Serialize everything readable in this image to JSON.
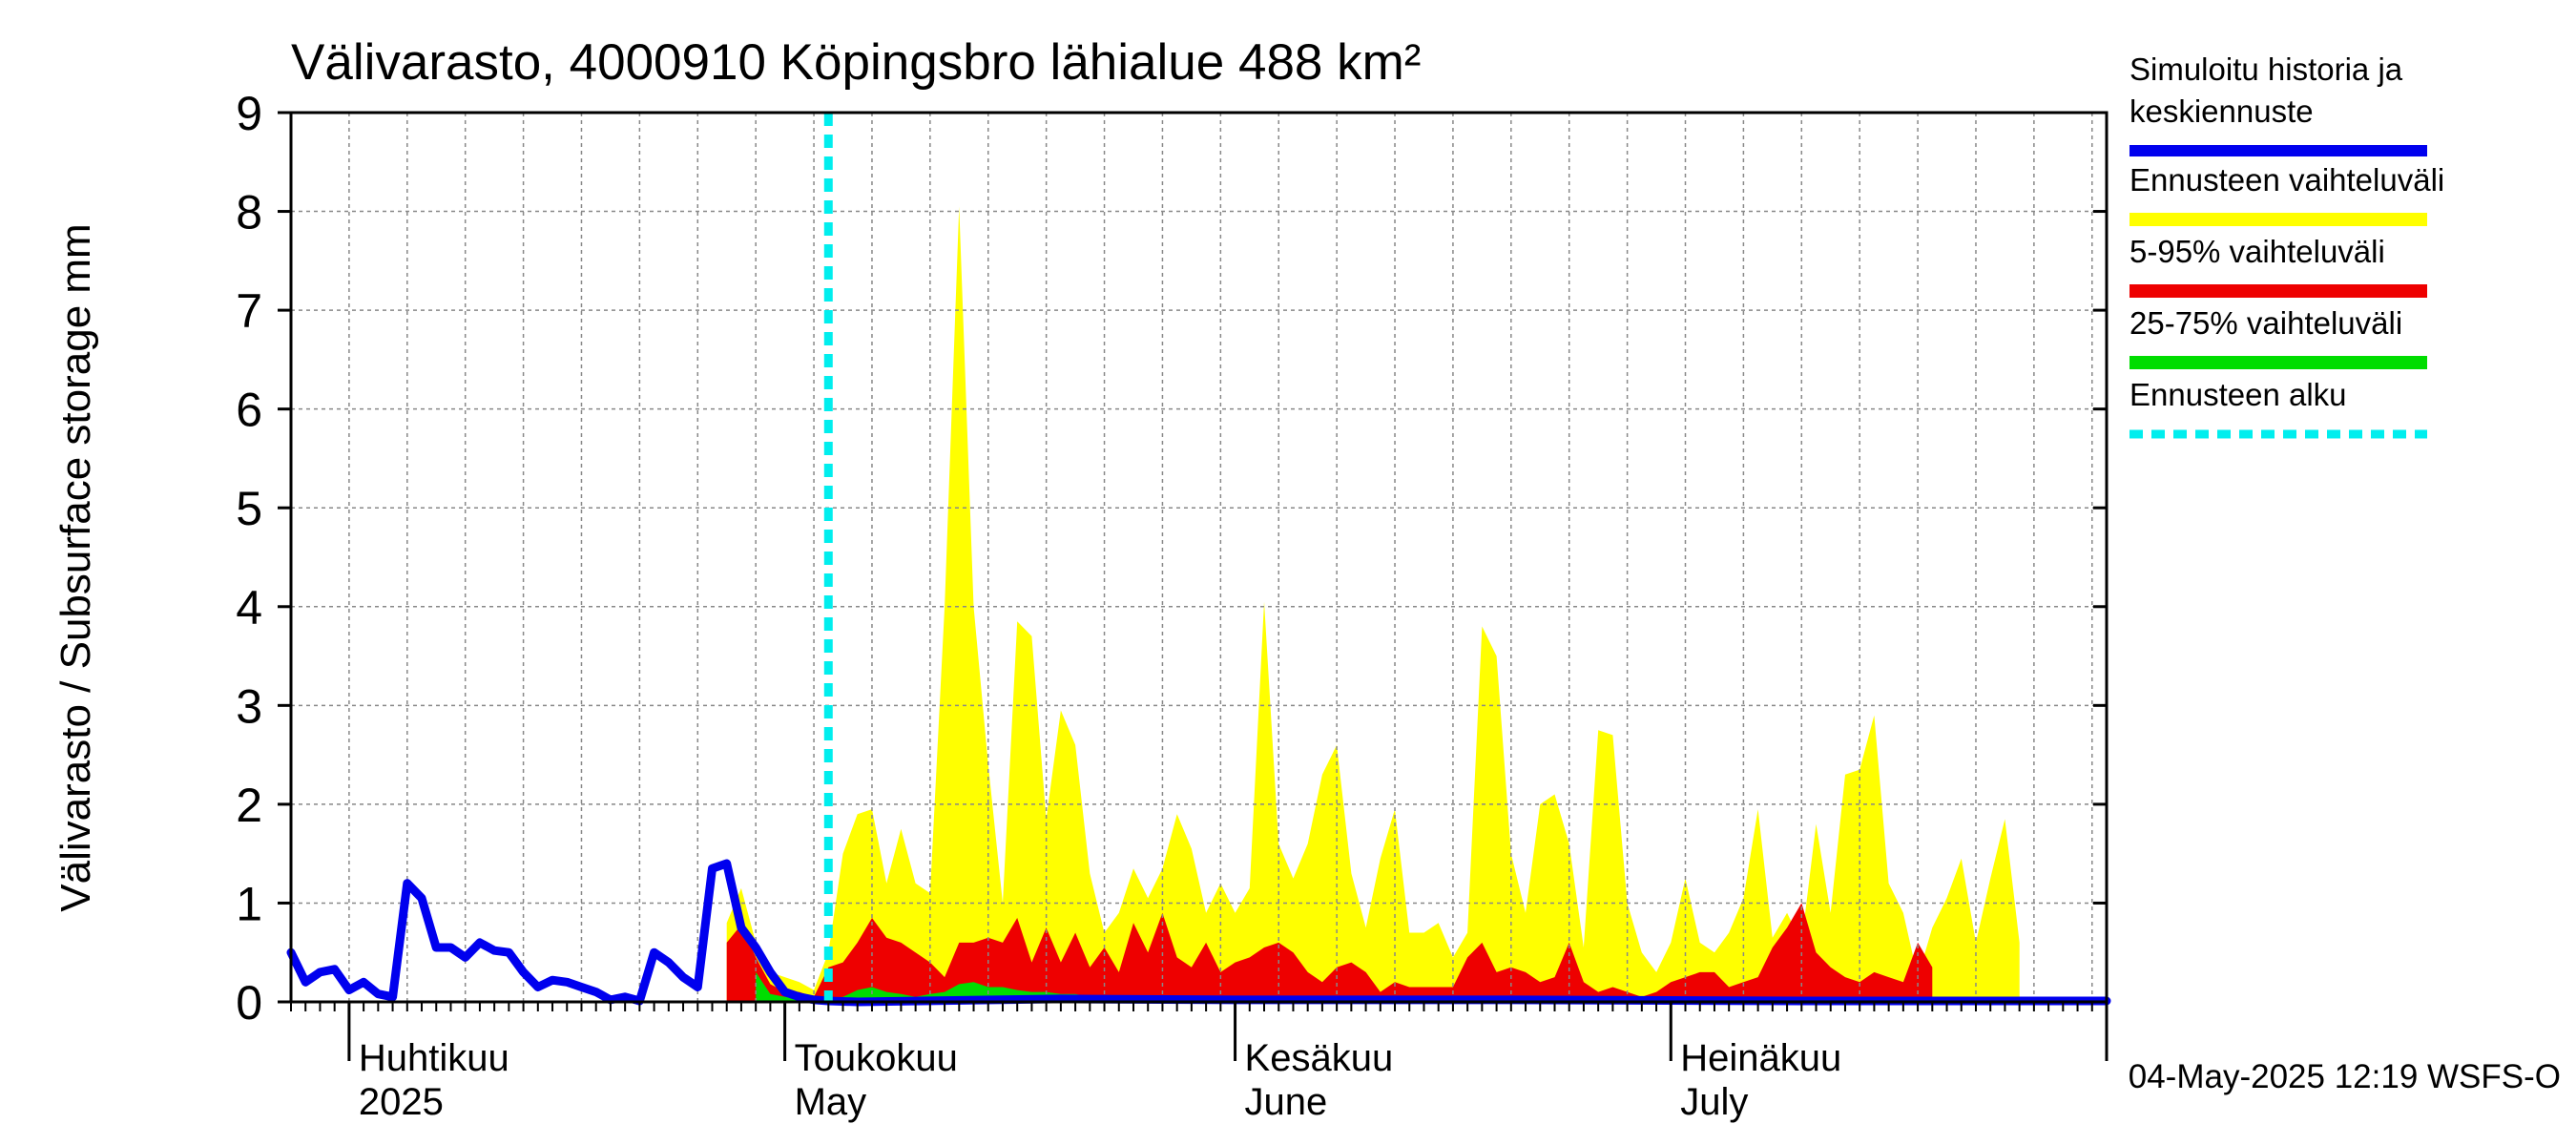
{
  "chart_data": {
    "type": "area",
    "title": "Välivarasto, 4000910 Köpingsbro lähialue 488 km²",
    "ylabel": "Välivarasto / Subsurface storage  mm",
    "ylim": [
      0,
      9
    ],
    "yticks": [
      0,
      1,
      2,
      3,
      4,
      5,
      6,
      7,
      8,
      9
    ],
    "xlim": [
      "2025-03-28",
      "2025-07-31"
    ],
    "grid": true,
    "legend_position": "right",
    "x_labels": [
      {
        "date": "2025-04-01",
        "line1": "Huhtikuu",
        "line2": "2025"
      },
      {
        "date": "2025-05-01",
        "line1": "Toukokuu",
        "line2": "May"
      },
      {
        "date": "2025-06-01",
        "line1": "Kesäkuu",
        "line2": "June"
      },
      {
        "date": "2025-07-01",
        "line1": "Heinäkuu",
        "line2": "July"
      }
    ],
    "forecast_start": "2025-05-04",
    "series": [
      {
        "name": "Simuloitu historia ja keskiennuste",
        "kind": "line",
        "color": "#0000ee",
        "points": [
          [
            "2025-03-28",
            0.5
          ],
          [
            "2025-03-29",
            0.2
          ],
          [
            "2025-03-30",
            0.3
          ],
          [
            "2025-03-31",
            0.33
          ],
          [
            "2025-04-01",
            0.12
          ],
          [
            "2025-04-02",
            0.2
          ],
          [
            "2025-04-03",
            0.08
          ],
          [
            "2025-04-04",
            0.05
          ],
          [
            "2025-04-05",
            1.2
          ],
          [
            "2025-04-06",
            1.05
          ],
          [
            "2025-04-07",
            0.55
          ],
          [
            "2025-04-08",
            0.55
          ],
          [
            "2025-04-09",
            0.45
          ],
          [
            "2025-04-10",
            0.6
          ],
          [
            "2025-04-11",
            0.52
          ],
          [
            "2025-04-12",
            0.5
          ],
          [
            "2025-04-13",
            0.3
          ],
          [
            "2025-04-14",
            0.15
          ],
          [
            "2025-04-15",
            0.22
          ],
          [
            "2025-04-16",
            0.2
          ],
          [
            "2025-04-17",
            0.15
          ],
          [
            "2025-04-18",
            0.1
          ],
          [
            "2025-04-19",
            0.02
          ],
          [
            "2025-04-20",
            0.05
          ],
          [
            "2025-04-21",
            0.01
          ],
          [
            "2025-04-22",
            0.5
          ],
          [
            "2025-04-23",
            0.4
          ],
          [
            "2025-04-24",
            0.25
          ],
          [
            "2025-04-25",
            0.15
          ],
          [
            "2025-04-26",
            1.35
          ],
          [
            "2025-04-27",
            1.4
          ],
          [
            "2025-04-28",
            0.75
          ],
          [
            "2025-04-29",
            0.55
          ],
          [
            "2025-04-30",
            0.3
          ],
          [
            "2025-05-01",
            0.1
          ],
          [
            "2025-05-02",
            0.05
          ],
          [
            "2025-05-03",
            0.02
          ],
          [
            "2025-05-04",
            0.01
          ],
          [
            "2025-05-06",
            0.0
          ],
          [
            "2025-05-20",
            0.03
          ],
          [
            "2025-06-01",
            0.02
          ],
          [
            "2025-06-20",
            0.02
          ],
          [
            "2025-07-10",
            0.01
          ],
          [
            "2025-07-31",
            0.01
          ]
        ]
      },
      {
        "name": "Ennusteen vaihteluväli",
        "kind": "band",
        "color": "#ffff00",
        "upper": [
          [
            "2025-04-27",
            0.8
          ],
          [
            "2025-04-28",
            1.15
          ],
          [
            "2025-04-29",
            0.6
          ],
          [
            "2025-04-30",
            0.3
          ],
          [
            "2025-05-01",
            0.25
          ],
          [
            "2025-05-02",
            0.2
          ],
          [
            "2025-05-03",
            0.12
          ],
          [
            "2025-05-04",
            0.5
          ],
          [
            "2025-05-05",
            1.5
          ],
          [
            "2025-05-06",
            1.9
          ],
          [
            "2025-05-07",
            1.95
          ],
          [
            "2025-05-08",
            1.2
          ],
          [
            "2025-05-09",
            1.75
          ],
          [
            "2025-05-10",
            1.2
          ],
          [
            "2025-05-11",
            1.1
          ],
          [
            "2025-05-12",
            4.0
          ],
          [
            "2025-05-13",
            8.05
          ],
          [
            "2025-05-14",
            4.0
          ],
          [
            "2025-05-15",
            2.4
          ],
          [
            "2025-05-16",
            1.0
          ],
          [
            "2025-05-17",
            3.85
          ],
          [
            "2025-05-18",
            3.7
          ],
          [
            "2025-05-19",
            1.85
          ],
          [
            "2025-05-20",
            2.95
          ],
          [
            "2025-05-21",
            2.6
          ],
          [
            "2025-05-22",
            1.3
          ],
          [
            "2025-05-23",
            0.7
          ],
          [
            "2025-05-24",
            0.9
          ],
          [
            "2025-05-25",
            1.35
          ],
          [
            "2025-05-26",
            1.05
          ],
          [
            "2025-05-27",
            1.35
          ],
          [
            "2025-05-28",
            1.9
          ],
          [
            "2025-05-29",
            1.55
          ],
          [
            "2025-05-30",
            0.9
          ],
          [
            "2025-05-31",
            1.2
          ],
          [
            "2025-06-01",
            0.9
          ],
          [
            "2025-06-02",
            1.15
          ],
          [
            "2025-06-03",
            4.05
          ],
          [
            "2025-06-04",
            1.6
          ],
          [
            "2025-06-05",
            1.25
          ],
          [
            "2025-06-06",
            1.6
          ],
          [
            "2025-06-07",
            2.3
          ],
          [
            "2025-06-08",
            2.6
          ],
          [
            "2025-06-09",
            1.3
          ],
          [
            "2025-06-10",
            0.75
          ],
          [
            "2025-06-11",
            1.45
          ],
          [
            "2025-06-12",
            1.95
          ],
          [
            "2025-06-13",
            0.7
          ],
          [
            "2025-06-14",
            0.7
          ],
          [
            "2025-06-15",
            0.8
          ],
          [
            "2025-06-16",
            0.45
          ],
          [
            "2025-06-17",
            0.7
          ],
          [
            "2025-06-18",
            3.8
          ],
          [
            "2025-06-19",
            3.5
          ],
          [
            "2025-06-20",
            1.5
          ],
          [
            "2025-06-21",
            0.9
          ],
          [
            "2025-06-22",
            2.0
          ],
          [
            "2025-06-23",
            2.1
          ],
          [
            "2025-06-24",
            1.6
          ],
          [
            "2025-06-25",
            0.55
          ],
          [
            "2025-06-26",
            2.75
          ],
          [
            "2025-06-27",
            2.7
          ],
          [
            "2025-06-28",
            1.0
          ],
          [
            "2025-06-29",
            0.5
          ],
          [
            "2025-06-30",
            0.3
          ],
          [
            "2025-07-01",
            0.6
          ],
          [
            "2025-07-02",
            1.25
          ],
          [
            "2025-07-03",
            0.6
          ],
          [
            "2025-07-04",
            0.5
          ],
          [
            "2025-07-05",
            0.7
          ],
          [
            "2025-07-06",
            1.05
          ],
          [
            "2025-07-07",
            1.95
          ],
          [
            "2025-07-08",
            0.65
          ],
          [
            "2025-07-09",
            0.9
          ],
          [
            "2025-07-10",
            0.6
          ],
          [
            "2025-07-11",
            1.8
          ],
          [
            "2025-07-12",
            0.9
          ],
          [
            "2025-07-13",
            2.3
          ],
          [
            "2025-07-14",
            2.35
          ],
          [
            "2025-07-15",
            2.9
          ],
          [
            "2025-07-16",
            1.2
          ],
          [
            "2025-07-17",
            0.9
          ],
          [
            "2025-07-18",
            0.25
          ],
          [
            "2025-07-19",
            0.75
          ],
          [
            "2025-07-20",
            1.05
          ],
          [
            "2025-07-21",
            1.45
          ],
          [
            "2025-07-22",
            0.6
          ],
          [
            "2025-07-23",
            1.25
          ],
          [
            "2025-07-24",
            1.85
          ],
          [
            "2025-07-25",
            0.6
          ]
        ],
        "lower": [
          [
            "2025-04-27",
            0.0
          ],
          [
            "2025-07-25",
            0.0
          ]
        ]
      },
      {
        "name": "5-95% vaihteluväli",
        "kind": "band",
        "color": "#ee0000",
        "upper": [
          [
            "2025-04-27",
            0.6
          ],
          [
            "2025-04-28",
            0.78
          ],
          [
            "2025-04-29",
            0.45
          ],
          [
            "2025-04-30",
            0.18
          ],
          [
            "2025-05-01",
            0.1
          ],
          [
            "2025-05-02",
            0.1
          ],
          [
            "2025-05-03",
            0.05
          ],
          [
            "2025-05-04",
            0.35
          ],
          [
            "2025-05-05",
            0.4
          ],
          [
            "2025-05-06",
            0.6
          ],
          [
            "2025-05-07",
            0.85
          ],
          [
            "2025-05-08",
            0.65
          ],
          [
            "2025-05-09",
            0.6
          ],
          [
            "2025-05-10",
            0.5
          ],
          [
            "2025-05-11",
            0.4
          ],
          [
            "2025-05-12",
            0.25
          ],
          [
            "2025-05-13",
            0.6
          ],
          [
            "2025-05-14",
            0.6
          ],
          [
            "2025-05-15",
            0.65
          ],
          [
            "2025-05-16",
            0.6
          ],
          [
            "2025-05-17",
            0.85
          ],
          [
            "2025-05-18",
            0.4
          ],
          [
            "2025-05-19",
            0.75
          ],
          [
            "2025-05-20",
            0.4
          ],
          [
            "2025-05-21",
            0.7
          ],
          [
            "2025-05-22",
            0.35
          ],
          [
            "2025-05-23",
            0.55
          ],
          [
            "2025-05-24",
            0.3
          ],
          [
            "2025-05-25",
            0.8
          ],
          [
            "2025-05-26",
            0.5
          ],
          [
            "2025-05-27",
            0.9
          ],
          [
            "2025-05-28",
            0.45
          ],
          [
            "2025-05-29",
            0.35
          ],
          [
            "2025-05-30",
            0.6
          ],
          [
            "2025-05-31",
            0.3
          ],
          [
            "2025-06-01",
            0.4
          ],
          [
            "2025-06-02",
            0.45
          ],
          [
            "2025-06-03",
            0.55
          ],
          [
            "2025-06-04",
            0.6
          ],
          [
            "2025-06-05",
            0.5
          ],
          [
            "2025-06-06",
            0.3
          ],
          [
            "2025-06-07",
            0.2
          ],
          [
            "2025-06-08",
            0.35
          ],
          [
            "2025-06-09",
            0.4
          ],
          [
            "2025-06-10",
            0.3
          ],
          [
            "2025-06-11",
            0.1
          ],
          [
            "2025-06-12",
            0.2
          ],
          [
            "2025-06-13",
            0.15
          ],
          [
            "2025-06-14",
            0.15
          ],
          [
            "2025-06-15",
            0.15
          ],
          [
            "2025-06-16",
            0.15
          ],
          [
            "2025-06-17",
            0.45
          ],
          [
            "2025-06-18",
            0.6
          ],
          [
            "2025-06-19",
            0.3
          ],
          [
            "2025-06-20",
            0.35
          ],
          [
            "2025-06-21",
            0.3
          ],
          [
            "2025-06-22",
            0.2
          ],
          [
            "2025-06-23",
            0.25
          ],
          [
            "2025-06-24",
            0.6
          ],
          [
            "2025-06-25",
            0.2
          ],
          [
            "2025-06-26",
            0.1
          ],
          [
            "2025-06-27",
            0.15
          ],
          [
            "2025-06-28",
            0.1
          ],
          [
            "2025-06-29",
            0.05
          ],
          [
            "2025-06-30",
            0.1
          ],
          [
            "2025-07-01",
            0.2
          ],
          [
            "2025-07-02",
            0.25
          ],
          [
            "2025-07-03",
            0.3
          ],
          [
            "2025-07-04",
            0.3
          ],
          [
            "2025-07-05",
            0.15
          ],
          [
            "2025-07-06",
            0.2
          ],
          [
            "2025-07-07",
            0.25
          ],
          [
            "2025-07-08",
            0.55
          ],
          [
            "2025-07-09",
            0.75
          ],
          [
            "2025-07-10",
            1.0
          ],
          [
            "2025-07-11",
            0.5
          ],
          [
            "2025-07-12",
            0.35
          ],
          [
            "2025-07-13",
            0.25
          ],
          [
            "2025-07-14",
            0.2
          ],
          [
            "2025-07-15",
            0.3
          ],
          [
            "2025-07-16",
            0.25
          ],
          [
            "2025-07-17",
            0.2
          ],
          [
            "2025-07-18",
            0.6
          ],
          [
            "2025-07-19",
            0.35
          ]
        ],
        "lower": [
          [
            "2025-04-27",
            0.0
          ],
          [
            "2025-07-19",
            0.0
          ]
        ]
      },
      {
        "name": "25-75% vaihteluväli",
        "kind": "band",
        "color": "#00dd00",
        "upper": [
          [
            "2025-04-29",
            0.3
          ],
          [
            "2025-04-30",
            0.08
          ],
          [
            "2025-05-01",
            0.05
          ],
          [
            "2025-05-03",
            0.02
          ],
          [
            "2025-05-05",
            0.05
          ],
          [
            "2025-05-06",
            0.12
          ],
          [
            "2025-05-07",
            0.15
          ],
          [
            "2025-05-08",
            0.1
          ],
          [
            "2025-05-09",
            0.08
          ],
          [
            "2025-05-10",
            0.05
          ],
          [
            "2025-05-11",
            0.08
          ],
          [
            "2025-05-12",
            0.1
          ],
          [
            "2025-05-13",
            0.18
          ],
          [
            "2025-05-14",
            0.2
          ],
          [
            "2025-05-15",
            0.15
          ],
          [
            "2025-05-16",
            0.15
          ],
          [
            "2025-05-17",
            0.12
          ],
          [
            "2025-05-18",
            0.1
          ],
          [
            "2025-05-19",
            0.1
          ],
          [
            "2025-05-20",
            0.08
          ],
          [
            "2025-05-21",
            0.08
          ],
          [
            "2025-05-22",
            0.05
          ],
          [
            "2025-05-23",
            0.06
          ],
          [
            "2025-05-24",
            0.04
          ],
          [
            "2025-05-25",
            0.03
          ],
          [
            "2025-05-26",
            0.02
          ],
          [
            "2025-05-31",
            0.02
          ],
          [
            "2025-06-10",
            0.02
          ],
          [
            "2025-06-15",
            0.04
          ],
          [
            "2025-06-18",
            0.06
          ],
          [
            "2025-06-21",
            0.04
          ],
          [
            "2025-06-25",
            0.02
          ],
          [
            "2025-07-05",
            0.02
          ],
          [
            "2025-07-10",
            0.03
          ],
          [
            "2025-07-19",
            0.02
          ]
        ],
        "lower": [
          [
            "2025-04-29",
            0.0
          ],
          [
            "2025-07-19",
            0.0
          ]
        ]
      },
      {
        "name": "Ennusteen alku",
        "kind": "vline",
        "color": "#00eeee"
      }
    ],
    "footer": "04-May-2025 12:19 WSFS-O"
  }
}
